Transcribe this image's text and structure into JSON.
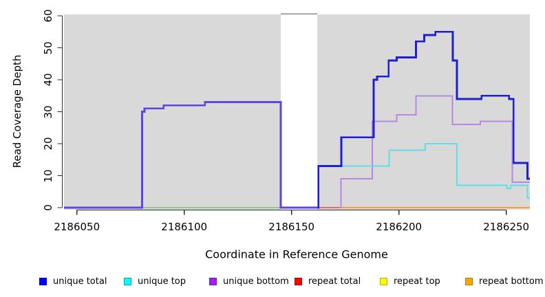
{
  "figure": {
    "background": "#ffffff",
    "plot_background": "#d9d9d9",
    "axis_color": "#2b2b2b",
    "text_color": "#000000",
    "gap_fill": "#ffffff",
    "gap_border": "#8a8a8a"
  },
  "chart_data": {
    "type": "line",
    "style": "step",
    "title": "",
    "xlabel": "Coordinate in Reference Genome",
    "ylabel": "Read Coverage Depth",
    "xlim": [
      2186044,
      2186261
    ],
    "ylim": [
      0,
      60
    ],
    "xticks": [
      2186050,
      2186100,
      2186150,
      2186200,
      2186250
    ],
    "yticks": [
      0,
      10,
      20,
      30,
      40,
      50,
      60
    ],
    "grid": false,
    "legend_position": "bottom",
    "gap_region": {
      "x_start": 2186145,
      "x_end": 2186162,
      "note": "white masked band with gray top border"
    },
    "series": [
      {
        "name": "baseline-green",
        "color": "#90c990",
        "lw": 1.6,
        "points": [
          [
            2186080.5,
            0
          ],
          [
            2186145,
            0
          ]
        ]
      },
      {
        "name": "baseline-red",
        "color": "#e86a6a",
        "lw": 2,
        "points": [
          [
            2186162.3,
            0
          ],
          [
            2186173.2,
            0
          ]
        ]
      },
      {
        "name": "repeat-bottom-baseline-orange",
        "color": "#ff9e21",
        "lw": 2.4,
        "points": [
          [
            2186172.5,
            0
          ],
          [
            2186261,
            0
          ]
        ]
      },
      {
        "name": "unique-bottom",
        "color": "#b787e3",
        "lw": 2,
        "points": [
          [
            2186172.8,
            0
          ],
          [
            2186173,
            9
          ],
          [
            2186187.6,
            27
          ],
          [
            2186199,
            29
          ],
          [
            2186208,
            35
          ],
          [
            2186225,
            26
          ],
          [
            2186237.9,
            27
          ],
          [
            2186252.8,
            8
          ],
          [
            2186261,
            8
          ]
        ]
      },
      {
        "name": "unique-top",
        "color": "#5fdde9",
        "lw": 2,
        "points": [
          [
            2186162.2,
            0
          ],
          [
            2186162.4,
            13
          ],
          [
            2186195.5,
            18
          ],
          [
            2186212.3,
            20
          ],
          [
            2186227,
            7
          ],
          [
            2186250.2,
            6
          ],
          [
            2186252,
            7
          ],
          [
            2186259.9,
            3
          ],
          [
            2186261,
            3
          ]
        ]
      },
      {
        "name": "unique-total-bottom-overlap-left",
        "color": "#5c45e0",
        "lw": 2.8,
        "points": [
          [
            2186044,
            0
          ],
          [
            2186080.4,
            30
          ],
          [
            2186081.5,
            31
          ],
          [
            2186090.4,
            32
          ],
          [
            2186109.6,
            33
          ],
          [
            2186145,
            0
          ],
          [
            2186162.2,
            0
          ]
        ]
      },
      {
        "name": "unique-total",
        "color": "#1f1fd0",
        "lw": 2.8,
        "points": [
          [
            2186162.2,
            0
          ],
          [
            2186162.5,
            13
          ],
          [
            2186173.2,
            22
          ],
          [
            2186188.2,
            40
          ],
          [
            2186189.8,
            41
          ],
          [
            2186195.2,
            46
          ],
          [
            2186199,
            47
          ],
          [
            2186208,
            52
          ],
          [
            2186211.8,
            54
          ],
          [
            2186217,
            55
          ],
          [
            2186225.1,
            46
          ],
          [
            2186227,
            34
          ],
          [
            2186238.5,
            35
          ],
          [
            2186251.3,
            34
          ],
          [
            2186253.4,
            14
          ],
          [
            2186259.9,
            9
          ],
          [
            2186261,
            9
          ]
        ]
      }
    ],
    "legend": [
      {
        "label": "unique total",
        "fill": "#0000ff",
        "border": "#0000bb"
      },
      {
        "label": "unique top",
        "fill": "#00ffff",
        "border": "#00aabb"
      },
      {
        "label": "unique bottom",
        "fill": "#a020f0",
        "border": "#7716b4"
      },
      {
        "label": "repeat total",
        "fill": "#ff0000",
        "border": "#bb0000"
      },
      {
        "label": "repeat top",
        "fill": "#ffff00",
        "border": "#bbaa00"
      },
      {
        "label": "repeat bottom",
        "fill": "#ffa500",
        "border": "#bb7700"
      }
    ]
  }
}
